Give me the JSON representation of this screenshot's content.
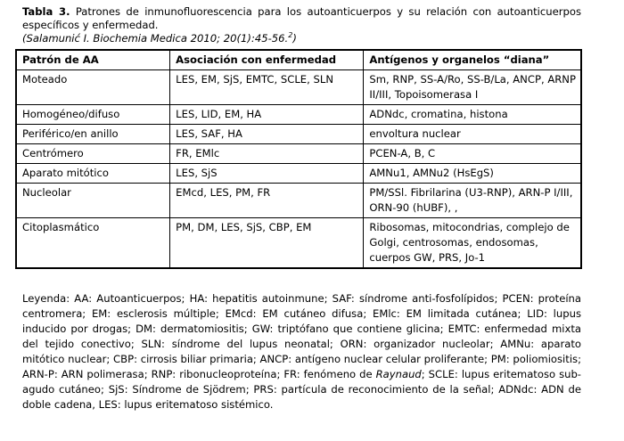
{
  "title": {
    "label": "Tabla 3.",
    "text": "Patrones de inmunofluorescencia para los autoanticuerpos y su relación con autoanticuerpos específicos y enfermedad."
  },
  "citation": {
    "text": "(Salamunić I. Biochemia Medica 2010; 20(1):45-56.",
    "ref": "2",
    "end": ")"
  },
  "table": {
    "header": [
      "Patrón de AA",
      "Asociación con enfermedad",
      "Antígenos y organelos “diana”"
    ],
    "rows": [
      [
        "Moteado",
        "LES, EM, SjS, EMTC, SCLE, SLN",
        "Sm, RNP, SS-A/Ro, SS-B/La, ANCP, ARNP II/III, Topoisomerasa I"
      ],
      [
        "Homogéneo/difuso",
        "LES, LID, EM, HA",
        "ADNdc, cromatina, histona"
      ],
      [
        "Periférico/en anillo",
        "LES, SAF, HA",
        "envoltura nuclear"
      ],
      [
        "Centrómero",
        "FR, EMlc",
        "PCEN-A, B, C"
      ],
      [
        "Aparato mitótico",
        "LES, SjS",
        "AMNu1, AMNu2 (HsEgS)"
      ],
      [
        "Nucleolar",
        "EMcd, LES, PM, FR",
        "PM/SSl. Fibrilarina (U3-RNP), ARN-P I/III, ORN-90 (hUBF), ,"
      ],
      [
        "Citoplasmático",
        "PM, DM, LES, SjS, CBP, EM",
        "Ribosomas, mitocondrias, complejo de Golgi, centrosomas, endosomas, cuerpos GW, PRS, Jo-1"
      ]
    ]
  },
  "legend": [
    "Leyenda:  AA: Autoanticuerpos; HA: hepatitis autoinmune; SAF: síndrome anti-fosfolípidos; PCEN: proteína centromera; EM: esclerosis múltiple; EMcd: EM cutáneo difusa; EMlc: EM limitada cutánea; LID: lupus inducido por drogas; DM: dermatomiositis; GW: triptófano que contiene glicina; EMTC: enfermedad mixta del tejido conectivo; SLN: síndrome del lupus neonatal; ORN: organizador nucleolar; AMNu: aparato mitótico nuclear; CBP: cirrosis biliar primaria; ANCP: antígeno nuclear celular proliferante; PM: poliomiositis; ARN-P: ARN polimerasa; RNP: ribonucleoproteína; FR: fenómeno de ",
    "Raynaud",
    "; SCLE: lupus eritematoso sub-agudo cutáneo; SjS: Síndrome de Sjödrem; PRS: partícula de reconocimiento de la señal; ADNdc: ADN de doble cadena, LES: lupus eritematoso sistémico."
  ]
}
